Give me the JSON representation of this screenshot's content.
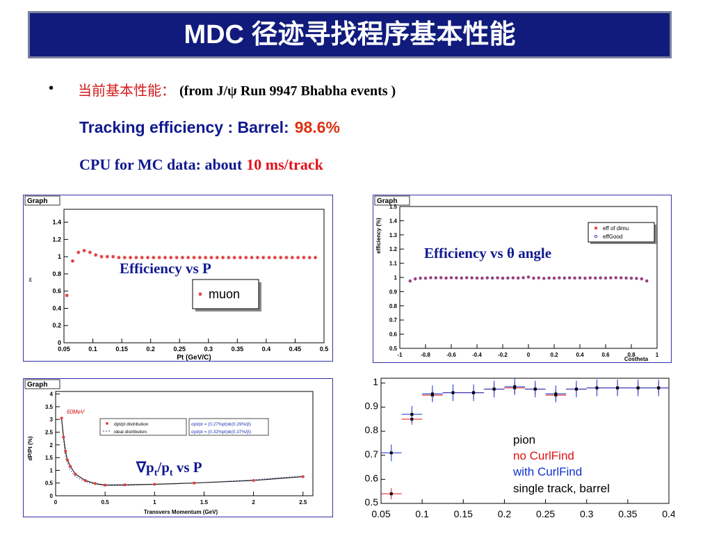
{
  "slide": {
    "title": "MDC 径迹寻找程序基本性能",
    "bullet": "•",
    "line1_cn": "当前基本性能：",
    "line1_src": "(from J/ψ Run 9947  Bhabha  events )",
    "line2_label": "Tracking efficiency : Barrel:",
    "line2_value": "98.6%",
    "line3_label": "CPU for MC data:  about",
    "line3_value": "10 ms/track"
  },
  "colors": {
    "title_bg": "#101b7c",
    "text_blue": "#10198f",
    "red": "#d31a1a",
    "marker": "#e03a3a"
  },
  "chart_data": [
    {
      "type": "scatter",
      "frame_title": "Graph",
      "caption": "Efficiency vs P",
      "xlabel": "Pt  (GeV/C)",
      "ylabel": "ε",
      "xlim": [
        0.05,
        0.5
      ],
      "ylim": [
        0,
        1.55
      ],
      "xticks": [
        "0.05",
        "0.1",
        "0.15",
        "0.2",
        "0.25",
        "0.3",
        "0.35",
        "0.4",
        "0.45",
        "0.5"
      ],
      "yticks": [
        "0",
        "0.2",
        "0.4",
        "0.6",
        "0.8",
        "1",
        "1.2",
        "1.4"
      ],
      "legend": "muon",
      "series": [
        {
          "name": "muon",
          "x": [
            0.055,
            0.065,
            0.075,
            0.085,
            0.095,
            0.105,
            0.115,
            0.125,
            0.135,
            0.145,
            0.155,
            0.165,
            0.175,
            0.185,
            0.195,
            0.205,
            0.215,
            0.225,
            0.235,
            0.245,
            0.255,
            0.265,
            0.275,
            0.285,
            0.295,
            0.305,
            0.315,
            0.325,
            0.335,
            0.345,
            0.355,
            0.365,
            0.375,
            0.385,
            0.395,
            0.405,
            0.415,
            0.425,
            0.435,
            0.445,
            0.455,
            0.465,
            0.475,
            0.485
          ],
          "y": [
            0.55,
            0.95,
            1.05,
            1.07,
            1.05,
            1.02,
            1.0,
            1.0,
            1.0,
            0.99,
            0.99,
            0.99,
            0.99,
            0.99,
            0.99,
            0.99,
            0.99,
            0.99,
            0.99,
            0.99,
            0.99,
            0.99,
            0.99,
            0.99,
            0.99,
            0.99,
            0.99,
            0.99,
            0.99,
            0.99,
            0.99,
            0.99,
            0.99,
            0.99,
            0.99,
            0.99,
            0.99,
            0.99,
            0.99,
            0.99,
            0.99,
            0.99,
            0.99,
            0.99
          ]
        }
      ]
    },
    {
      "type": "scatter",
      "frame_title": "Graph",
      "caption": "Efficiency vs θ angle",
      "xlabel": "Costheta",
      "ylabel": "efficiency (%)",
      "xlim": [
        -1,
        1
      ],
      "ylim": [
        0.5,
        1.5
      ],
      "xticks": [
        "-1",
        "-0.8",
        "-0.6",
        "-0.4",
        "-0.2",
        "0",
        "0.2",
        "0.4",
        "0.6",
        "0.8",
        "1"
      ],
      "yticks": [
        "0.5",
        "0.6",
        "0.7",
        "0.8",
        "0.9",
        "1",
        "1.1",
        "1.2",
        "1.3",
        "1.4",
        "1.5"
      ],
      "legend_items": [
        "eff of dimu",
        "effGood"
      ],
      "series": [
        {
          "name": "eff of dimu",
          "color": "#e03a3a",
          "x": [
            -0.92,
            -0.88,
            -0.84,
            -0.8,
            -0.76,
            -0.72,
            -0.68,
            -0.64,
            -0.6,
            -0.56,
            -0.52,
            -0.48,
            -0.44,
            -0.4,
            -0.36,
            -0.32,
            -0.28,
            -0.24,
            -0.2,
            -0.16,
            -0.12,
            -0.08,
            -0.04,
            0.0,
            0.04,
            0.08,
            0.12,
            0.16,
            0.2,
            0.24,
            0.28,
            0.32,
            0.36,
            0.4,
            0.44,
            0.48,
            0.52,
            0.56,
            0.6,
            0.64,
            0.68,
            0.72,
            0.76,
            0.8,
            0.84,
            0.88,
            0.92
          ],
          "y": [
            0.975,
            0.99,
            0.995,
            0.995,
            0.998,
            0.997,
            0.998,
            0.996,
            0.998,
            0.997,
            0.996,
            0.998,
            0.997,
            0.996,
            0.995,
            0.997,
            0.996,
            0.997,
            0.995,
            0.996,
            0.997,
            0.996,
            0.998,
            1.003,
            0.995,
            0.997,
            0.993,
            0.996,
            0.995,
            0.997,
            0.996,
            0.997,
            0.996,
            0.997,
            0.995,
            0.997,
            0.996,
            0.997,
            0.996,
            0.997,
            0.998,
            0.997,
            0.996,
            0.995,
            0.993,
            0.99,
            0.975
          ]
        },
        {
          "name": "effGood",
          "color": "#4040c0",
          "x": [
            -0.92,
            -0.88,
            -0.84,
            -0.8,
            -0.76,
            -0.72,
            -0.68,
            -0.64,
            -0.6,
            -0.56,
            -0.52,
            -0.48,
            -0.44,
            -0.4,
            -0.36,
            -0.32,
            -0.28,
            -0.24,
            -0.2,
            -0.16,
            -0.12,
            -0.08,
            -0.04,
            0.0,
            0.04,
            0.08,
            0.12,
            0.16,
            0.2,
            0.24,
            0.28,
            0.32,
            0.36,
            0.4,
            0.44,
            0.48,
            0.52,
            0.56,
            0.6,
            0.64,
            0.68,
            0.72,
            0.76,
            0.8,
            0.84,
            0.88,
            0.92
          ],
          "y": [
            0.975,
            0.99,
            0.995,
            0.995,
            0.998,
            0.997,
            0.998,
            0.996,
            0.998,
            0.997,
            0.996,
            0.998,
            0.997,
            0.996,
            0.995,
            0.997,
            0.996,
            0.997,
            0.995,
            0.996,
            0.997,
            0.996,
            0.998,
            1.003,
            0.995,
            0.997,
            0.993,
            0.996,
            0.995,
            0.997,
            0.996,
            0.997,
            0.996,
            0.997,
            0.995,
            0.997,
            0.996,
            0.997,
            0.996,
            0.997,
            0.998,
            0.997,
            0.996,
            0.995,
            0.993,
            0.99,
            0.975
          ]
        }
      ]
    },
    {
      "type": "line",
      "frame_title": "Graph",
      "caption_parts": [
        "∇p",
        "t",
        "/p",
        "t",
        " vs P"
      ],
      "xlabel": "Transvers Momentum (GeV)",
      "ylabel": "dP/Pt (%)",
      "xlim": [
        0,
        2.6
      ],
      "ylim": [
        0,
        4.1
      ],
      "xticks": [
        "0",
        "0.5",
        "1",
        "1.5",
        "2",
        "2.5"
      ],
      "yticks": [
        "0",
        "0.5",
        "1",
        "1.5",
        "2",
        "2.5",
        "3",
        "3.5",
        "4"
      ],
      "annotation": "60MeV",
      "legend_items": [
        "dpt/pt distribution",
        "ideal distribution"
      ],
      "formulas": [
        "σpt/pt = (0.27%pt)⊕(0.29%/β)",
        "σpt/pt = (0.32%pt)⊕(0.37%/β)"
      ],
      "series": [
        {
          "name": "dpt/pt distribution",
          "color": "#e03a3a",
          "x": [
            0.06,
            0.08,
            0.1,
            0.12,
            0.15,
            0.2,
            0.3,
            0.4,
            0.5,
            0.7,
            1.0,
            1.4,
            2.0,
            2.5
          ],
          "y": [
            3.05,
            2.3,
            1.75,
            1.4,
            1.15,
            0.85,
            0.6,
            0.48,
            0.42,
            0.43,
            0.45,
            0.5,
            0.6,
            0.75
          ]
        },
        {
          "name": "ideal distribution",
          "color": "#202020",
          "x": [
            0.06,
            0.1,
            0.15,
            0.2,
            0.3,
            0.4,
            0.5,
            0.7,
            1.0,
            1.5,
            2.0,
            2.5
          ],
          "y": [
            3.0,
            1.5,
            1.0,
            0.75,
            0.55,
            0.45,
            0.4,
            0.4,
            0.45,
            0.52,
            0.63,
            0.78
          ]
        }
      ]
    },
    {
      "type": "scatter",
      "xlim": [
        0.05,
        0.4
      ],
      "ylim": [
        0.5,
        1.02
      ],
      "xticks": [
        "0.05",
        "0.1",
        "0.15",
        "0.2",
        "0.25",
        "0.3",
        "0.35",
        "0.4"
      ],
      "yticks": [
        "0.5",
        "0.6",
        "0.7",
        "0.8",
        "0.9",
        "1"
      ],
      "legend_items": [
        "pion",
        "no CurlFind",
        "with CurlFind",
        "single track, barrel"
      ],
      "legend_colors": [
        "#000000",
        "#e01010",
        "#1030d0",
        "#000000"
      ],
      "series": [
        {
          "name": "no CurlFind",
          "color": "#e01010",
          "x": [
            0.0625,
            0.0875,
            0.1125,
            0.1375,
            0.1625,
            0.1875,
            0.2125,
            0.2375,
            0.2625,
            0.2875,
            0.3125,
            0.3375,
            0.3625,
            0.3875
          ],
          "y": [
            0.54,
            0.85,
            0.95,
            0.96,
            0.96,
            0.975,
            0.98,
            0.975,
            0.95,
            0.975,
            0.98,
            0.98,
            0.98,
            0.98
          ]
        },
        {
          "name": "with CurlFind",
          "color": "#1030d0",
          "x": [
            0.0625,
            0.0875,
            0.1125,
            0.1375,
            0.1625,
            0.1875,
            0.2125,
            0.2375,
            0.2625,
            0.2875,
            0.3125,
            0.3375,
            0.3625,
            0.3875
          ],
          "y": [
            0.71,
            0.87,
            0.955,
            0.96,
            0.96,
            0.975,
            0.985,
            0.975,
            0.955,
            0.975,
            0.98,
            0.98,
            0.98,
            0.98
          ]
        }
      ]
    }
  ]
}
